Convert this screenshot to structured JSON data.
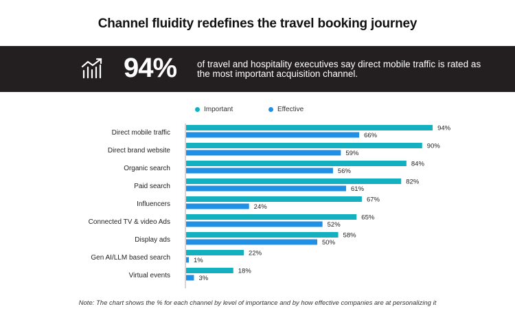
{
  "title": "Channel fluidity redefines the travel booking journey",
  "banner": {
    "icon": "bar-chart-trend-up-icon",
    "stat": "94%",
    "statement": "of travel and hospitality executives say direct mobile traffic is rated as the most important acquisition channel."
  },
  "note": "Note: The chart shows the % for each channel by level of importance and by how effective companies are at personalizing it",
  "chart_data": {
    "type": "bar",
    "orientation": "horizontal",
    "categories": [
      "Direct mobile traffic",
      "Direct brand website",
      "Organic search",
      "Paid search",
      "Influencers",
      "Connected TV & video Ads",
      "Display ads",
      "Gen AI/LLM based search",
      "Virtual events"
    ],
    "series": [
      {
        "name": "Important",
        "color": "#13b1c0",
        "values": [
          94,
          90,
          84,
          82,
          67,
          65,
          58,
          22,
          18
        ]
      },
      {
        "name": "Effective",
        "color": "#1e90e6",
        "values": [
          66,
          59,
          56,
          61,
          24,
          52,
          50,
          1,
          3
        ]
      }
    ],
    "value_suffix": "%",
    "legend": "top",
    "grid": false,
    "xlim": [
      0,
      100
    ]
  }
}
